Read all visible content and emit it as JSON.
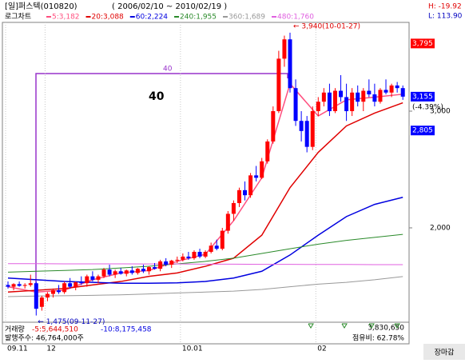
{
  "header": {
    "title": "[일]퍼스텍(010820)",
    "range": "( 2006/02/10 ~ 2010/02/19 )",
    "chart_mode": "로그차트",
    "high_info": "H: -19.92",
    "low_info": "L: 113.90"
  },
  "chart_data": {
    "type": "candlestick",
    "log_scale": true,
    "categories": [
      "09.11",
      null,
      null,
      null,
      null,
      null,
      null,
      "12",
      null,
      null,
      null,
      null,
      null,
      null,
      null,
      null,
      null,
      null,
      null,
      null,
      null,
      null,
      null,
      null,
      null,
      null,
      null,
      null,
      null,
      null,
      null,
      "10.01",
      null,
      null,
      null,
      null,
      null,
      null,
      null,
      null,
      null,
      null,
      null,
      null,
      null,
      null,
      null,
      null,
      null,
      null,
      null,
      null,
      null,
      null,
      null,
      "02",
      null,
      null,
      null,
      null,
      null,
      null,
      null,
      null,
      null,
      null,
      null,
      null,
      null,
      null,
      null
    ],
    "open": [
      1640,
      1630,
      1645,
      1635,
      1640,
      1650,
      1520,
      1570,
      1590,
      1610,
      1600,
      1650,
      1630,
      1655,
      1650,
      1690,
      1670,
      1690,
      1730,
      1700,
      1720,
      1705,
      1725,
      1710,
      1735,
      1720,
      1745,
      1735,
      1780,
      1760,
      1785,
      1790,
      1810,
      1800,
      1840,
      1810,
      1840,
      1880,
      1860,
      1980,
      2100,
      2180,
      2280,
      2240,
      2400,
      2380,
      2520,
      2700,
      3000,
      3600,
      3850,
      3250,
      2900,
      2900,
      2650,
      3000,
      3100,
      3200,
      3000,
      3220,
      3150,
      3000,
      3200,
      3100,
      3220,
      3180,
      3100,
      3230,
      3200,
      3280,
      3250
    ],
    "high": [
      1660,
      1650,
      1660,
      1650,
      1700,
      1660,
      1580,
      1600,
      1620,
      1640,
      1660,
      1680,
      1660,
      1690,
      1700,
      1720,
      1700,
      1740,
      1760,
      1730,
      1740,
      1730,
      1750,
      1740,
      1760,
      1750,
      1770,
      1790,
      1800,
      1790,
      1810,
      1830,
      1840,
      1850,
      1860,
      1850,
      1900,
      1920,
      2000,
      2120,
      2200,
      2300,
      2350,
      2420,
      2480,
      2550,
      2720,
      3050,
      3700,
      3900,
      3940,
      3350,
      3000,
      2950,
      3050,
      3150,
      3250,
      3300,
      3250,
      3400,
      3300,
      3250,
      3280,
      3250,
      3350,
      3300,
      3250,
      3350,
      3300,
      3320,
      3280
    ],
    "low": [
      1620,
      1610,
      1630,
      1620,
      1630,
      1475,
      1500,
      1550,
      1570,
      1590,
      1590,
      1620,
      1610,
      1640,
      1630,
      1660,
      1650,
      1680,
      1690,
      1680,
      1700,
      1690,
      1700,
      1700,
      1710,
      1700,
      1730,
      1720,
      1750,
      1740,
      1770,
      1780,
      1790,
      1790,
      1800,
      1800,
      1830,
      1850,
      1850,
      1960,
      2050,
      2150,
      2200,
      2220,
      2350,
      2370,
      2500,
      2680,
      2980,
      3500,
      3200,
      2850,
      2700,
      2600,
      2620,
      2950,
      3050,
      2950,
      2980,
      3100,
      2900,
      2950,
      3050,
      3000,
      3150,
      3050,
      3080,
      3180,
      3150,
      3200,
      3120
    ],
    "close": [
      1630,
      1645,
      1635,
      1640,
      1650,
      1510,
      1570,
      1590,
      1610,
      1600,
      1650,
      1630,
      1655,
      1650,
      1690,
      1670,
      1690,
      1730,
      1700,
      1720,
      1705,
      1725,
      1710,
      1735,
      1720,
      1745,
      1735,
      1780,
      1760,
      1785,
      1790,
      1810,
      1800,
      1840,
      1810,
      1840,
      1880,
      1860,
      1980,
      2100,
      2180,
      2280,
      2240,
      2400,
      2380,
      2520,
      2700,
      3000,
      3600,
      3850,
      3250,
      2900,
      2800,
      2650,
      3000,
      3100,
      3200,
      3000,
      3220,
      3150,
      3000,
      3200,
      3100,
      3220,
      3180,
      3100,
      3230,
      3200,
      3280,
      3250,
      3155
    ],
    "up_color": "#ff0000",
    "down_color": "#0000ff",
    "ylim": [
      1453,
      4061
    ],
    "yticks": [
      {
        "value": 3000,
        "label": "3,000"
      },
      {
        "value": 2000,
        "label": "2,000"
      }
    ],
    "price_markers": [
      {
        "value": 3795,
        "label": "3,795",
        "color": "#ff0000"
      },
      {
        "value": 3155,
        "label": "3,155",
        "color": "#0000ff",
        "change": "(-4.39%)"
      },
      {
        "value": 2805,
        "label": "2,805",
        "color": "#0000ff"
      }
    ],
    "series": [
      {
        "name": "5:3,182",
        "color": "#ff4f7f",
        "x": [
          0,
          5,
          10,
          15,
          20,
          25,
          30,
          35,
          40,
          45,
          50,
          55,
          60,
          65,
          70
        ],
        "values": [
          1630,
          1600,
          1610,
          1670,
          1710,
          1725,
          1780,
          1825,
          2050,
          2380,
          3300,
          2950,
          3120,
          3150,
          3182
        ]
      },
      {
        "name": "20:3,088",
        "color": "#e00000",
        "x": [
          0,
          5,
          10,
          15,
          20,
          25,
          30,
          35,
          40,
          45,
          50,
          55,
          60,
          65,
          70
        ],
        "values": [
          1600,
          1610,
          1620,
          1640,
          1660,
          1690,
          1710,
          1750,
          1800,
          1950,
          2300,
          2600,
          2850,
          2980,
          3088
        ]
      },
      {
        "name": "60:2,224",
        "color": "#0000e0",
        "x": [
          0,
          5,
          10,
          15,
          20,
          25,
          30,
          35,
          40,
          45,
          50,
          55,
          60,
          65,
          70
        ],
        "values": [
          1680,
          1670,
          1660,
          1655,
          1650,
          1650,
          1652,
          1660,
          1680,
          1720,
          1820,
          1950,
          2080,
          2170,
          2224
        ]
      },
      {
        "name": "240:1,955",
        "color": "#2a8a2a",
        "x": [
          0,
          5,
          10,
          15,
          20,
          25,
          30,
          35,
          40,
          45,
          50,
          55,
          60,
          65,
          70
        ],
        "values": [
          1715,
          1720,
          1725,
          1730,
          1740,
          1750,
          1765,
          1780,
          1800,
          1830,
          1860,
          1890,
          1915,
          1935,
          1955
        ]
      },
      {
        "name": "360:1,689",
        "color": "#999999",
        "x": [
          0,
          5,
          10,
          15,
          20,
          25,
          30,
          35,
          40,
          45,
          50,
          55,
          60,
          65,
          70
        ],
        "values": [
          1575,
          1578,
          1580,
          1582,
          1585,
          1590,
          1595,
          1600,
          1605,
          1615,
          1630,
          1645,
          1655,
          1670,
          1689
        ]
      },
      {
        "name": "480:1,760",
        "color": "#e060e0",
        "x": [
          0,
          5,
          10,
          15,
          20,
          25,
          30,
          35,
          40,
          45,
          50,
          55,
          60,
          65,
          70
        ],
        "values": [
          1766,
          1766,
          1765,
          1765,
          1765,
          1764,
          1764,
          1763,
          1763,
          1762,
          1762,
          1761,
          1761,
          1760,
          1760
        ]
      }
    ],
    "annotations": {
      "high_note": "← 3,940(10-01-27)",
      "low_note": "← 1,475(09-11-27)",
      "period_small": "40",
      "period_big": "40"
    }
  },
  "volume": {
    "label": "거래량",
    "ma5": "-5:5,644,510",
    "ma10": "-10:8,175,458",
    "last": "3,830,650",
    "shares": "발행주수: 46,764,000주",
    "ratio": "점유비: 62.78%"
  },
  "status": "장마감"
}
